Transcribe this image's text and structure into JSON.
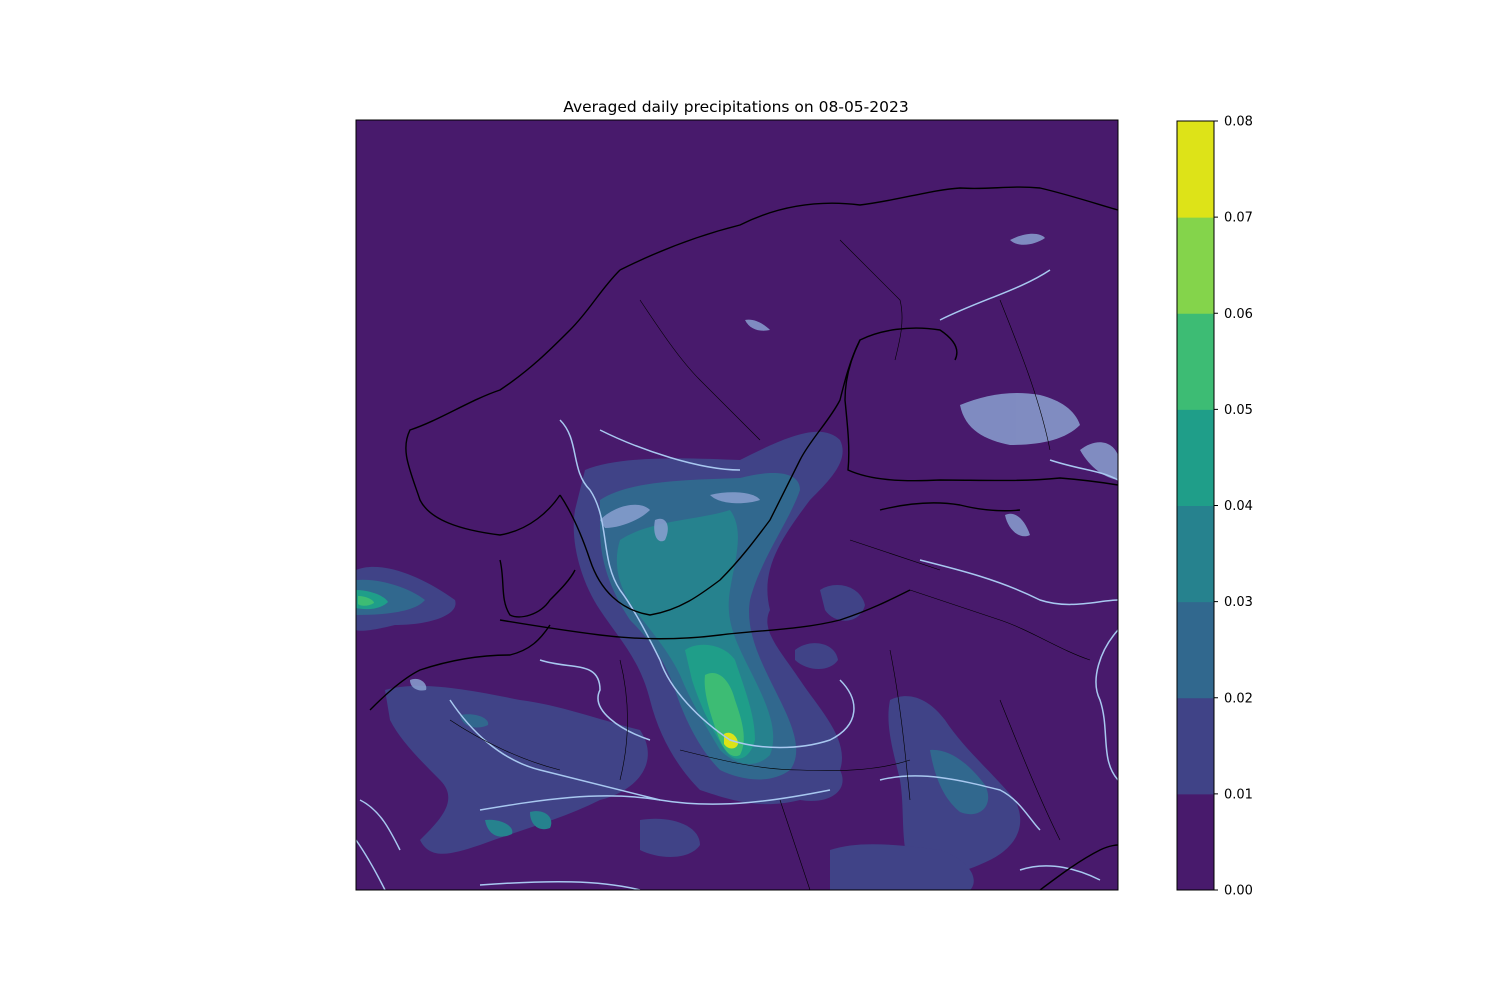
{
  "chart_data": {
    "type": "heatmap",
    "title": "Averaged daily precipitations on 08-05-2023",
    "xlabel": "",
    "ylabel": "",
    "colorbar": {
      "levels": [
        0.0,
        0.01,
        0.02,
        0.03,
        0.04,
        0.05,
        0.06,
        0.07,
        0.08
      ],
      "tick_labels": [
        "0.00",
        "0.01",
        "0.02",
        "0.03",
        "0.04",
        "0.05",
        "0.06",
        "0.07",
        "0.08"
      ],
      "colors": [
        "#481a6c",
        "#404387",
        "#31688e",
        "#26828e",
        "#1f9e89",
        "#3dbc74",
        "#84d44b",
        "#dde318"
      ],
      "placement": "right"
    },
    "map_colors": {
      "coastline": "#000000",
      "rivers": "#a8c8f0",
      "lakes": "#8aa0d0"
    }
  }
}
